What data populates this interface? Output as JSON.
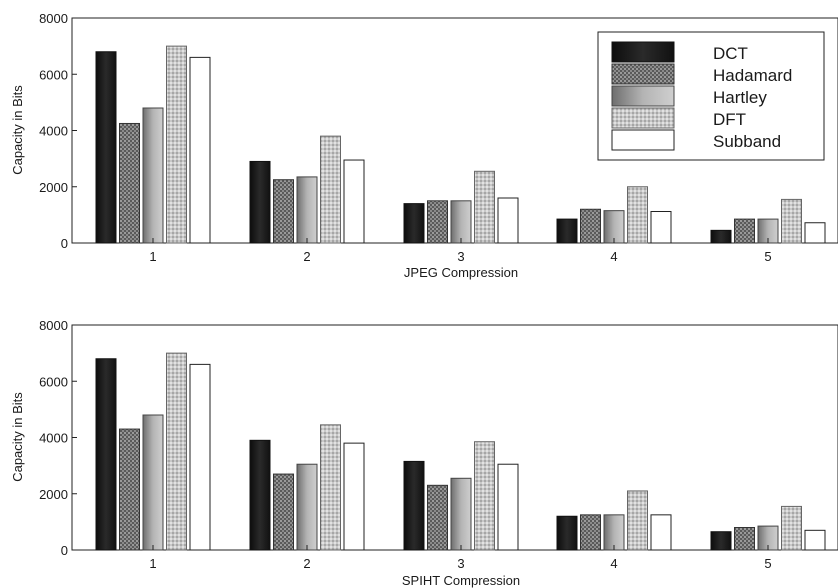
{
  "legend": {
    "entries": [
      "DCT",
      "Hadamard",
      "Hartley",
      "DFT",
      "Subband"
    ],
    "placement": "top-right of top panel"
  },
  "chart_data": [
    {
      "type": "bar",
      "xlabel": "JPEG Compression",
      "ylabel": "Capacity in Bits",
      "categories": [
        "1",
        "2",
        "3",
        "4",
        "5"
      ],
      "ylim": [
        0,
        8000
      ],
      "yticks": [
        "0",
        "2000",
        "4000",
        "6000",
        "8000"
      ],
      "grid": false,
      "series": [
        {
          "name": "DCT",
          "values": [
            6800,
            2900,
            1400,
            850,
            450
          ],
          "pattern": "dark"
        },
        {
          "name": "Hadamard",
          "values": [
            4250,
            2250,
            1500,
            1200,
            850
          ],
          "pattern": "check"
        },
        {
          "name": "Hartley",
          "values": [
            4800,
            2350,
            1500,
            1150,
            850
          ],
          "pattern": "fade"
        },
        {
          "name": "DFT",
          "values": [
            7000,
            3800,
            2550,
            2000,
            1550
          ],
          "pattern": "light"
        },
        {
          "name": "Subband",
          "values": [
            6600,
            2950,
            1600,
            1120,
            720
          ],
          "pattern": "white"
        }
      ]
    },
    {
      "type": "bar",
      "xlabel": "SPIHT Compression",
      "ylabel": "Capacity in Bits",
      "categories": [
        "1",
        "2",
        "3",
        "4",
        "5"
      ],
      "ylim": [
        0,
        8000
      ],
      "yticks": [
        "0",
        "2000",
        "4000",
        "6000",
        "8000"
      ],
      "grid": false,
      "series": [
        {
          "name": "DCT",
          "values": [
            6800,
            3900,
            3150,
            1200,
            650
          ],
          "pattern": "dark"
        },
        {
          "name": "Hadamard",
          "values": [
            4300,
            2700,
            2300,
            1250,
            800
          ],
          "pattern": "check"
        },
        {
          "name": "Hartley",
          "values": [
            4800,
            3050,
            2550,
            1250,
            850
          ],
          "pattern": "fade"
        },
        {
          "name": "DFT",
          "values": [
            7000,
            4450,
            3850,
            2100,
            1550
          ],
          "pattern": "light"
        },
        {
          "name": "Subband",
          "values": [
            6600,
            3800,
            3050,
            1250,
            700
          ],
          "pattern": "white"
        }
      ]
    }
  ]
}
